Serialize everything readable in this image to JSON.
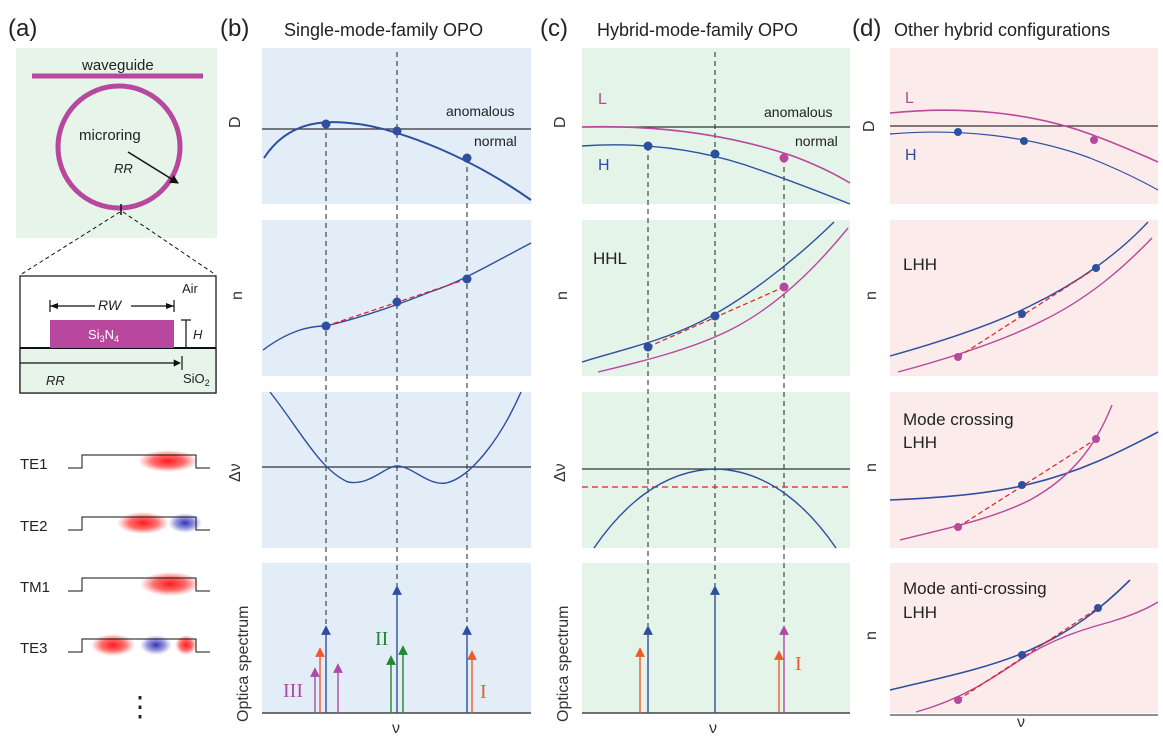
{
  "panel_letters": {
    "a": "(a)",
    "b": "(b)",
    "c": "(c)",
    "d": "(d)"
  },
  "titles": {
    "b": "Single-mode-family OPO",
    "c": "Hybrid-mode-family OPO",
    "d": "Other hybrid configurations"
  },
  "panel_a": {
    "waveguide": "waveguide",
    "microring": "microring",
    "rr": "RR",
    "rw": "RW",
    "air": "Air",
    "h": "H",
    "sin_main": "Si",
    "sin_sub1": "3",
    "sin_n": "N",
    "sin_sub2": "4",
    "sio2": "SiO",
    "sio2_sub": "2",
    "rr2": "RR",
    "modes": [
      "TE1",
      "TE2",
      "TM1",
      "TE3"
    ],
    "ellipsis": "⋮",
    "colors": {
      "ring": "#b8489e",
      "bg": "#e6f4ea",
      "red": "#ff2020",
      "blue": "#3a3ab8"
    }
  },
  "axis_labels": {
    "D": "D",
    "n": "n",
    "dv": "Δν",
    "spectrum": "Optica spectrum",
    "nu": "ν"
  },
  "panel_b": {
    "anomalous": "anomalous",
    "normal": "normal",
    "label_III": "III",
    "label_II": "II",
    "label_I": "I"
  },
  "panel_c": {
    "L": "L",
    "H": "H",
    "anomalous": "anomalous",
    "normal": "normal",
    "hhl": "HHL",
    "label_I": "I"
  },
  "panel_d": {
    "L": "L",
    "H": "H",
    "lhh1": "LHH",
    "crossing_1": "Mode crossing",
    "crossing_2": "LHH",
    "anti_1": "Mode anti-crossing",
    "anti_2": "LHH"
  },
  "colors": {
    "blue_bg": "#e3edf7",
    "green_bg": "#e4f4e8",
    "pink_bg": "#fcebeb",
    "blue": "#2e4fa0",
    "magenta": "#b8489e",
    "red_dash": "#e02020",
    "orange": "#ef5a2a",
    "green": "#1d8a2e",
    "purple": "#b04aa8"
  }
}
